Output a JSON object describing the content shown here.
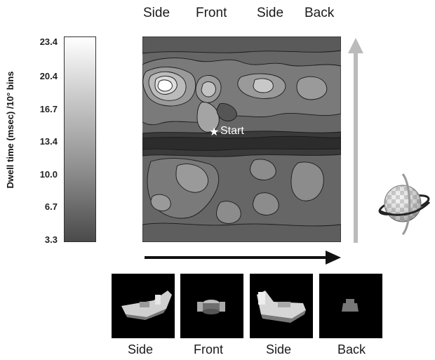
{
  "figure": {
    "view_labels_top": [
      "Side",
      "Front",
      "Side",
      "Back"
    ],
    "view_labels_bottom": [
      "Side",
      "Front",
      "Side",
      "Back"
    ],
    "start_label": "Start"
  },
  "colorbar": {
    "label": "Dwell time (msec) /10° bins",
    "ticks": [
      "23.4",
      "20.4",
      "16.7",
      "13.4",
      "10.0",
      "6.7",
      "3.3"
    ],
    "min": 3.3,
    "max": 23.4
  },
  "chart_data": {
    "type": "heatmap",
    "title": "",
    "xlabel": "",
    "ylabel": "",
    "colorbar_label": "Dwell time (msec) /10° bins",
    "colorbar_range": [
      3.3,
      23.4
    ],
    "colorbar_ticks": [
      23.4,
      20.4,
      16.7,
      13.4,
      10.0,
      6.7,
      3.3
    ],
    "x_tick_labels": [
      "Side",
      "Front",
      "Side",
      "Back"
    ],
    "annotations": [
      "Start"
    ],
    "grid": false
  },
  "colors": {
    "arrow_horizontal": "#111111",
    "arrow_vertical": "#bbbbbb",
    "thumb_background": "#000000"
  },
  "icons": [
    "rotating-sphere-icon",
    "start-star-icon"
  ]
}
